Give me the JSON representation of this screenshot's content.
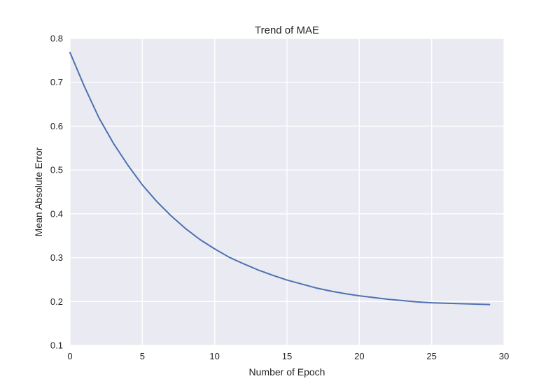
{
  "chart_data": {
    "type": "line",
    "title": "Trend of MAE",
    "xlabel": "Number of Epoch",
    "ylabel": "Mean Absolute Error",
    "xlim": [
      0,
      30
    ],
    "ylim": [
      0.1,
      0.8
    ],
    "xticks": [
      0,
      5,
      10,
      15,
      20,
      25,
      30
    ],
    "yticks": [
      0.1,
      0.2,
      0.3,
      0.4,
      0.5,
      0.6,
      0.7,
      0.8
    ],
    "grid": true,
    "series": [
      {
        "x": [
          0,
          1,
          2,
          3,
          4,
          5,
          6,
          7,
          8,
          9,
          10,
          11,
          12,
          13,
          14,
          15,
          16,
          17,
          18,
          19,
          20,
          21,
          22,
          23,
          24,
          25,
          26,
          27,
          28,
          29
        ],
        "values": [
          0.768,
          0.69,
          0.619,
          0.561,
          0.511,
          0.466,
          0.428,
          0.395,
          0.366,
          0.341,
          0.32,
          0.301,
          0.286,
          0.272,
          0.26,
          0.249,
          0.24,
          0.231,
          0.224,
          0.218,
          0.213,
          0.209,
          0.205,
          0.202,
          0.199,
          0.197,
          0.196,
          0.195,
          0.194,
          0.193
        ]
      }
    ]
  },
  "colors": {
    "plot_background": "#eaeaf2",
    "grid": "#ffffff",
    "line": "#4c72b0"
  }
}
